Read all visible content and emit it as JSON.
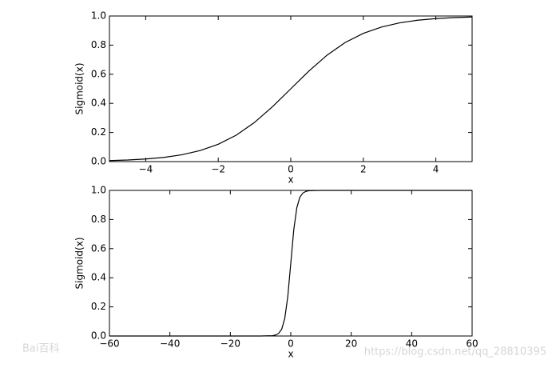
{
  "chart_data": [
    {
      "type": "line",
      "xlabel": "x",
      "ylabel": "Sigmoid(x)",
      "color": "#000000",
      "x": [
        -5,
        -4.5,
        -4,
        -3.5,
        -3,
        -2.5,
        -2,
        -1.5,
        -1,
        -0.5,
        0,
        0.5,
        1,
        1.5,
        2,
        2.5,
        3,
        3.5,
        4,
        4.5,
        5
      ],
      "values": [
        0.007,
        0.011,
        0.018,
        0.029,
        0.047,
        0.076,
        0.119,
        0.182,
        0.269,
        0.378,
        0.5,
        0.622,
        0.731,
        0.818,
        0.881,
        0.924,
        0.953,
        0.971,
        0.982,
        0.989,
        0.993
      ],
      "xlim": [
        -5,
        5
      ],
      "ylim": [
        0,
        1
      ],
      "xticks": [
        {
          "value": -4,
          "label": "−4"
        },
        {
          "value": -2,
          "label": "−2"
        },
        0,
        2,
        4
      ],
      "yticks": [
        {
          "value": 0,
          "label": "0.0"
        },
        0.2,
        0.4,
        0.6,
        0.8,
        {
          "value": 1,
          "label": "1.0"
        }
      ]
    },
    {
      "type": "line",
      "xlabel": "x",
      "ylabel": "Sigmoid(x)",
      "color": "#000000",
      "x": [
        -60,
        -40,
        -20,
        -10,
        -6,
        -5,
        -4,
        -3,
        -2,
        -1,
        0,
        1,
        2,
        3,
        4,
        5,
        6,
        10,
        20,
        40,
        60
      ],
      "values": [
        0,
        0,
        0,
        0,
        0.002,
        0.007,
        0.018,
        0.047,
        0.119,
        0.269,
        0.5,
        0.731,
        0.881,
        0.953,
        0.982,
        0.993,
        0.998,
        1,
        1,
        1,
        1
      ],
      "xlim": [
        -60,
        60
      ],
      "ylim": [
        0,
        1
      ],
      "xticks": [
        {
          "value": -60,
          "label": "−60"
        },
        {
          "value": -40,
          "label": "−40"
        },
        {
          "value": -20,
          "label": "−20"
        },
        0,
        20,
        40,
        60
      ],
      "yticks": [
        {
          "value": 0,
          "label": "0.0"
        },
        0.2,
        0.4,
        0.6,
        0.8,
        {
          "value": 1,
          "label": "1.0"
        }
      ]
    }
  ],
  "watermarks": [
    "Bai百科",
    "https://blog.csdn.net/qq_28810395"
  ]
}
